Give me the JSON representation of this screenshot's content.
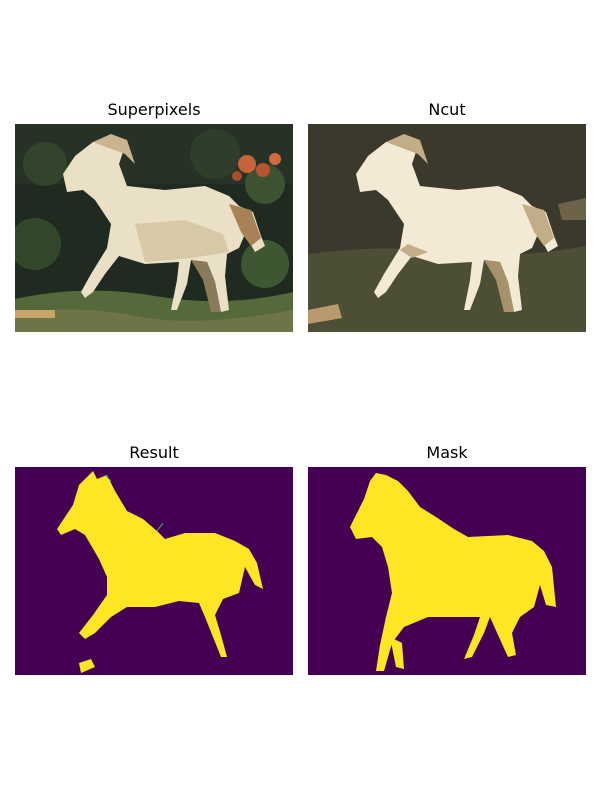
{
  "panels": [
    {
      "title": "Superpixels",
      "colors": {
        "background": "#1f2a20",
        "horse": "#eae0c6",
        "shade": "#c9b48e",
        "foliage": "#4f6a3a",
        "flowers": "#c8623a",
        "ground": "#6f7448"
      }
    },
    {
      "title": "Ncut",
      "colors": {
        "background": "#3b382c",
        "horse": "#f3ead6",
        "shade": "#c2ad86",
        "ground": "#4c4f36"
      }
    },
    {
      "title": "Result",
      "colors": {
        "background": "#440154",
        "foreground": "#fde725",
        "edge": "#35b779"
      }
    },
    {
      "title": "Mask",
      "colors": {
        "background": "#440154",
        "foreground": "#fde725",
        "edge": "#35b779"
      }
    }
  ]
}
